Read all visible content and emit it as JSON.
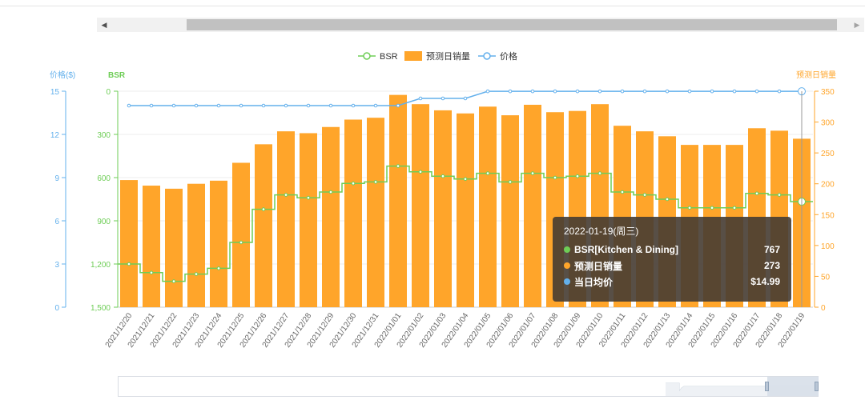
{
  "colors": {
    "bsr": "#6ecd56",
    "bar": "#ffa52a",
    "price": "#63b0ec",
    "price_axis": "#63b0ec",
    "bsr_axis": "#6ecd56",
    "sales_axis": "#ffa52a"
  },
  "legend": [
    {
      "label": "BSR",
      "color": "#6ecd56",
      "icon": "line-circle"
    },
    {
      "label": "预测日销量",
      "color": "#ffa52a",
      "icon": "rect"
    },
    {
      "label": "价格",
      "color": "#63b0ec",
      "icon": "line-circle"
    }
  ],
  "scrollbar": {
    "left_arrow": "◀",
    "right_arrow": "▶"
  },
  "tooltip": {
    "date": "2022-01-19(周三)",
    "rows": [
      {
        "label": "BSR[Kitchen & Dining]",
        "value": "767",
        "color": "#6ecd56"
      },
      {
        "label": "预测日销量",
        "value": "273",
        "color": "#ffa52a"
      },
      {
        "label": "当日均价",
        "value": "$14.99",
        "color": "#63b0ec"
      }
    ]
  },
  "chart_data": {
    "type": "bar",
    "title": "",
    "legend_position": "top-center",
    "grid": true,
    "axes": {
      "price": {
        "label": "价格($)",
        "ticks": [
          "0",
          "3",
          "6",
          "9",
          "12",
          "15"
        ],
        "range": [
          0,
          15
        ]
      },
      "bsr": {
        "label": "BSR",
        "ticks": [
          "0",
          "300",
          "600",
          "900",
          "1,200",
          "1,500"
        ],
        "range": [
          0,
          1500
        ],
        "inverted": true
      },
      "sales": {
        "label": "预测日销量",
        "ticks": [
          "0",
          "50",
          "100",
          "150",
          "200",
          "250",
          "300",
          "350"
        ],
        "range": [
          0,
          350
        ]
      }
    },
    "categories": [
      "2021/12/20",
      "2021/12/21",
      "2021/12/22",
      "2021/12/23",
      "2021/12/24",
      "2021/12/25",
      "2021/12/26",
      "2021/12/27",
      "2021/12/28",
      "2021/12/29",
      "2021/12/30",
      "2021/12/31",
      "2022/01/01",
      "2022/01/02",
      "2022/01/03",
      "2022/01/04",
      "2022/01/05",
      "2022/01/06",
      "2022/01/07",
      "2022/01/08",
      "2022/01/09",
      "2022/01/10",
      "2022/01/11",
      "2022/01/12",
      "2022/01/13",
      "2022/01/14",
      "2022/01/15",
      "2022/01/16",
      "2022/01/17",
      "2022/01/18",
      "2022/01/19"
    ],
    "series": [
      {
        "name": "预测日销量",
        "type": "bar",
        "axis": "sales",
        "values": [
          206,
          197,
          192,
          200,
          205,
          234,
          264,
          285,
          282,
          292,
          304,
          307,
          344,
          329,
          319,
          314,
          325,
          311,
          328,
          316,
          318,
          329,
          294,
          285,
          277,
          263,
          263,
          263,
          290,
          286,
          273
        ]
      },
      {
        "name": "BSR",
        "type": "line",
        "axis": "bsr",
        "step": true,
        "values": [
          1200,
          1260,
          1320,
          1270,
          1230,
          1050,
          820,
          720,
          740,
          700,
          640,
          630,
          520,
          560,
          590,
          610,
          570,
          630,
          570,
          600,
          590,
          570,
          700,
          720,
          750,
          810,
          810,
          810,
          710,
          720,
          767
        ]
      },
      {
        "name": "价格",
        "type": "line",
        "axis": "price",
        "values": [
          14.0,
          14.0,
          14.0,
          14.0,
          14.0,
          14.0,
          14.0,
          14.0,
          14.0,
          14.0,
          14.0,
          14.0,
          14.0,
          14.5,
          14.5,
          14.5,
          14.99,
          14.99,
          14.99,
          14.99,
          14.99,
          14.99,
          14.99,
          14.99,
          14.99,
          14.99,
          14.99,
          14.99,
          14.99,
          14.99,
          14.99
        ]
      }
    ]
  }
}
